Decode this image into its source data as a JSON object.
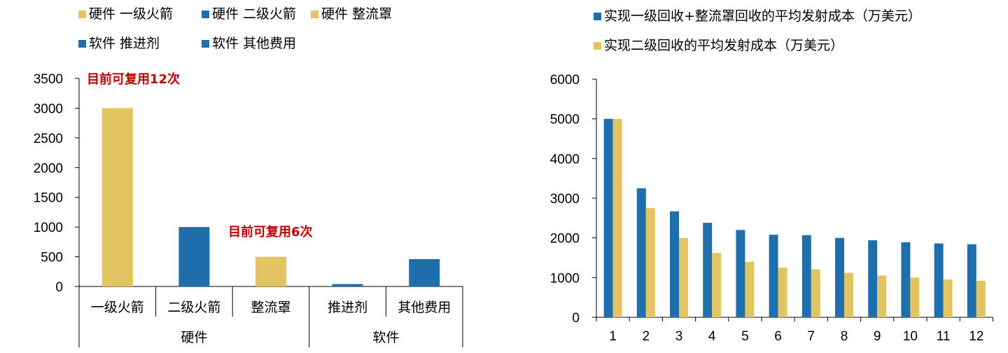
{
  "colors": {
    "gold": "#E2C562",
    "blue": "#1F6FAD",
    "annotation": "#C00000"
  },
  "chart_data": [
    {
      "type": "bar",
      "legend": [
        {
          "label": "硬件 一级火箭",
          "color": "#E2C562"
        },
        {
          "label": "硬件 二级火箭",
          "color": "#1F6FAD"
        },
        {
          "label": "硬件 整流罩",
          "color": "#E2C562"
        },
        {
          "label": "软件 推进剂",
          "color": "#1F6FAD"
        },
        {
          "label": "软件 其他费用",
          "color": "#1F6FAD"
        }
      ],
      "categories": [
        "一级火箭",
        "二级火箭",
        "整流罩",
        "推进剂",
        "其他费用"
      ],
      "groups": [
        {
          "label": "硬件",
          "span": [
            0,
            2
          ]
        },
        {
          "label": "软件",
          "span": [
            3,
            4
          ]
        }
      ],
      "values": [
        3000,
        1000,
        500,
        40,
        460
      ],
      "bar_colors": [
        "#E2C562",
        "#1F6FAD",
        "#E2C562",
        "#1F6FAD",
        "#1F6FAD"
      ],
      "ylim": [
        0,
        3500
      ],
      "yticks": [
        0,
        500,
        1000,
        1500,
        2000,
        2500,
        3000,
        3500
      ],
      "annotations": [
        {
          "text": "目前可复用12次",
          "category": 0
        },
        {
          "text": "目前可复用6次",
          "category": 2
        }
      ]
    },
    {
      "type": "bar",
      "categories": [
        "1",
        "2",
        "3",
        "4",
        "5",
        "6",
        "7",
        "8",
        "9",
        "10",
        "11",
        "12"
      ],
      "series": [
        {
          "name": "实现一级回收+整流罩回收的平均发射成本（万美元）",
          "color": "#1F6FAD",
          "values": [
            5000,
            3250,
            2670,
            2380,
            2200,
            2080,
            2070,
            2000,
            1940,
            1890,
            1860,
            1840
          ]
        },
        {
          "name": "实现二级回收的平均发射成本（万美元）",
          "color": "#E2C562",
          "values": [
            5000,
            2750,
            2000,
            1620,
            1400,
            1250,
            1210,
            1120,
            1050,
            1000,
            950,
            920
          ]
        }
      ],
      "ylim": [
        0,
        6000
      ],
      "yticks": [
        0,
        1000,
        2000,
        3000,
        4000,
        5000,
        6000
      ]
    }
  ]
}
